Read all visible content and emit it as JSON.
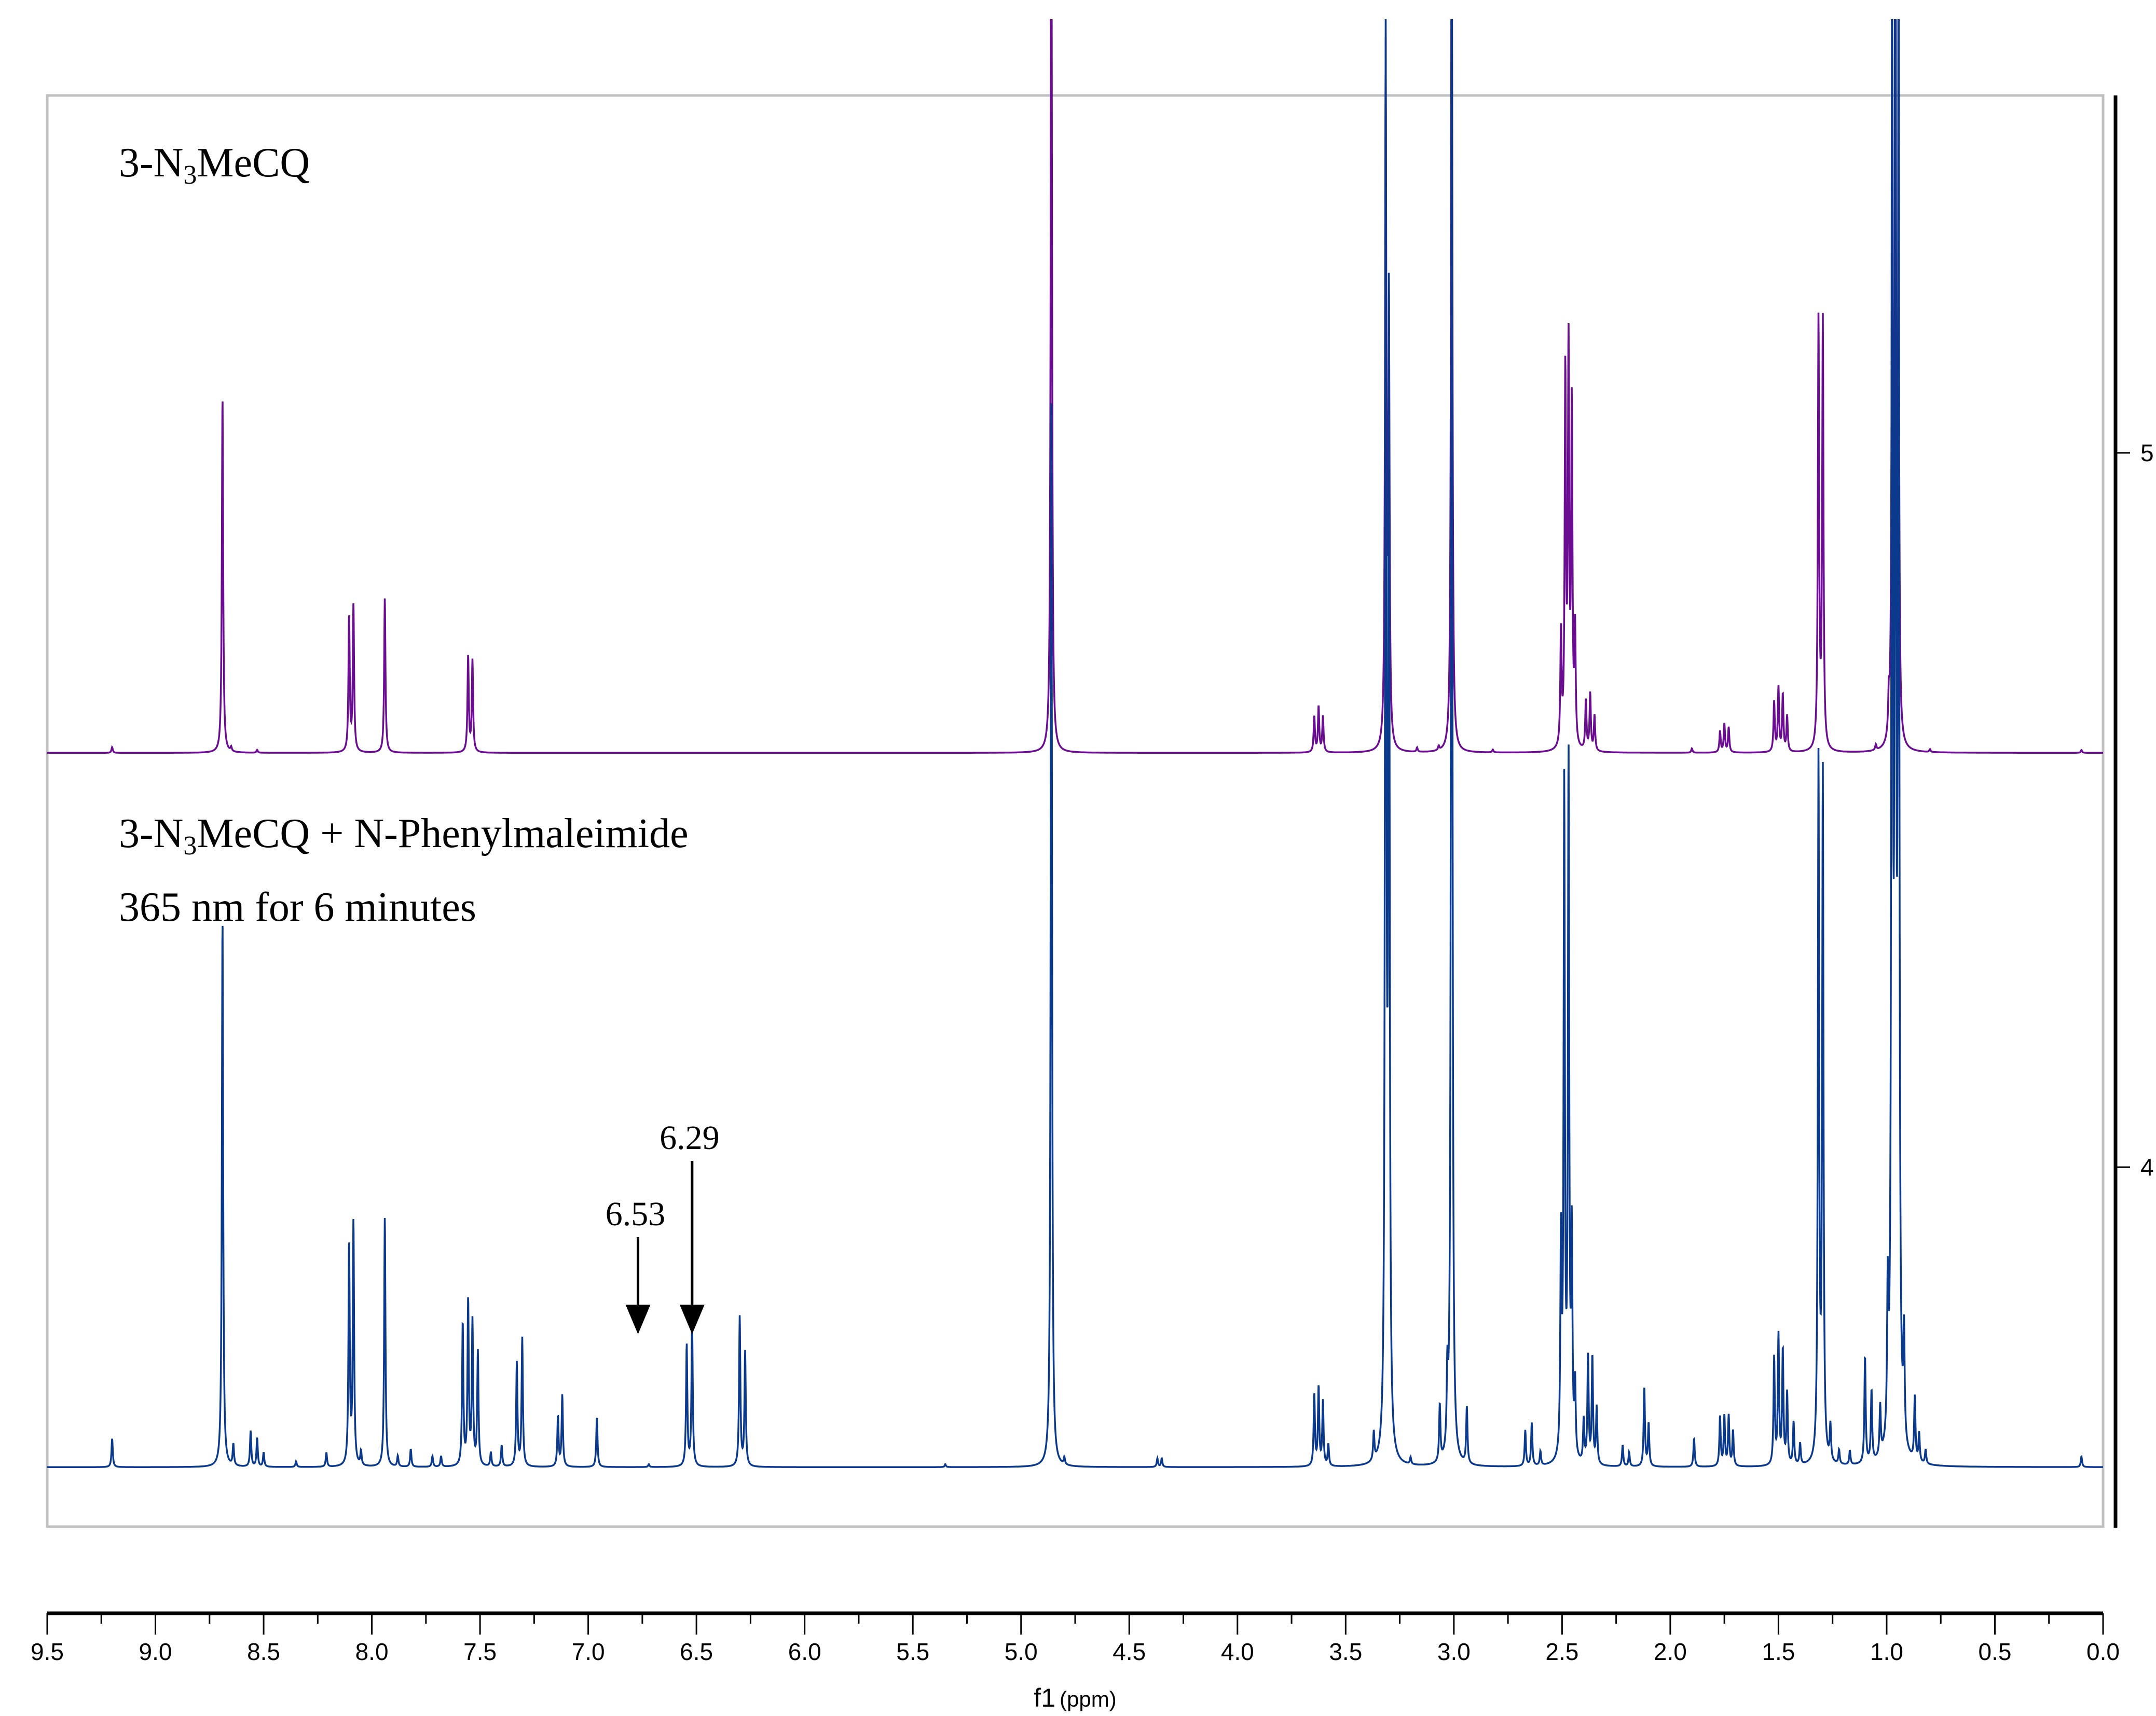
{
  "chart_data": {
    "type": "line",
    "xlabel": "f1 (ppm)",
    "xlabel_main": "f1",
    "xlabel_unit": "(ppm)",
    "xlim": [
      9.5,
      0.0
    ],
    "x_reversed": true,
    "x_ticks": [
      "9.5",
      "9.0",
      "8.5",
      "8.0",
      "7.5",
      "7.0",
      "6.5",
      "6.0",
      "5.5",
      "5.0",
      "4.5",
      "4.0",
      "3.5",
      "3.0",
      "2.5",
      "2.0",
      "1.5",
      "1.0",
      "0.5",
      "0.0"
    ],
    "y_right_ticks": [
      "5",
      "4"
    ],
    "grid": false,
    "series": [
      {
        "name": "3-N3MeCQ",
        "label": {
          "prefix": "3-N",
          "sub": "3",
          "suffix": "MeCQ"
        },
        "color": "#6a0d91",
        "baseline": 4.58,
        "peaks_ppm_height": [
          [
            9.2,
            0.008
          ],
          [
            8.69,
            0.5
          ],
          [
            8.65,
            0.006
          ],
          [
            8.53,
            0.004
          ],
          [
            8.105,
            0.19
          ],
          [
            8.085,
            0.205
          ],
          [
            7.94,
            0.217
          ],
          [
            7.555,
            0.135
          ],
          [
            7.535,
            0.128
          ],
          [
            4.86,
            1.3
          ],
          [
            3.645,
            0.05
          ],
          [
            3.625,
            0.064
          ],
          [
            3.605,
            0.05
          ],
          [
            3.315,
            0.97
          ],
          [
            3.3,
            0.6
          ],
          [
            3.01,
            1.3
          ],
          [
            3.17,
            0.006
          ],
          [
            3.07,
            0.006
          ],
          [
            2.82,
            0.004
          ],
          [
            2.505,
            0.16
          ],
          [
            2.485,
            0.52
          ],
          [
            2.47,
            0.55
          ],
          [
            2.455,
            0.47
          ],
          [
            2.44,
            0.16
          ],
          [
            2.39,
            0.07
          ],
          [
            2.37,
            0.08
          ],
          [
            2.35,
            0.05
          ],
          [
            1.9,
            0.006
          ],
          [
            1.77,
            0.03
          ],
          [
            1.75,
            0.04
          ],
          [
            1.73,
            0.035
          ],
          [
            1.52,
            0.07
          ],
          [
            1.5,
            0.09
          ],
          [
            1.48,
            0.08
          ],
          [
            1.46,
            0.05
          ],
          [
            1.315,
            0.6
          ],
          [
            1.295,
            0.6
          ],
          [
            1.05,
            0.008
          ],
          [
            0.99,
            0.05
          ],
          [
            0.975,
            0.67
          ],
          [
            0.96,
            1.3
          ],
          [
            0.945,
            0.65
          ],
          [
            0.8,
            0.004
          ],
          [
            0.1,
            0.004
          ]
        ]
      },
      {
        "name": "3-N3MeCQ + N-Phenylmaleimide",
        "label": {
          "prefix": "3-N",
          "sub": "3",
          "suffix": "MeCQ + N-Phenylmaleimide"
        },
        "label_line2": "365 nm for 6 minutes",
        "color": "#0b3a8c",
        "baseline": 3.58,
        "peaks_ppm_height": [
          [
            9.2,
            0.04
          ],
          [
            8.69,
            0.77
          ],
          [
            8.64,
            0.03
          ],
          [
            8.56,
            0.05
          ],
          [
            8.53,
            0.04
          ],
          [
            8.5,
            0.02
          ],
          [
            8.35,
            0.008
          ],
          [
            8.21,
            0.02
          ],
          [
            8.105,
            0.31
          ],
          [
            8.085,
            0.34
          ],
          [
            8.05,
            0.02
          ],
          [
            7.94,
            0.35
          ],
          [
            7.88,
            0.015
          ],
          [
            7.82,
            0.025
          ],
          [
            7.72,
            0.015
          ],
          [
            7.68,
            0.015
          ],
          [
            7.58,
            0.2
          ],
          [
            7.555,
            0.23
          ],
          [
            7.535,
            0.2
          ],
          [
            7.51,
            0.16
          ],
          [
            7.45,
            0.02
          ],
          [
            7.4,
            0.03
          ],
          [
            7.33,
            0.145
          ],
          [
            7.305,
            0.18
          ],
          [
            7.14,
            0.07
          ],
          [
            7.12,
            0.1
          ],
          [
            6.96,
            0.07
          ],
          [
            6.72,
            0.004
          ],
          [
            6.545,
            0.17
          ],
          [
            6.52,
            0.2
          ],
          [
            6.3,
            0.21
          ],
          [
            6.275,
            0.16
          ],
          [
            5.35,
            0.004
          ],
          [
            4.86,
            1.5
          ],
          [
            4.8,
            0.01
          ],
          [
            4.37,
            0.012
          ],
          [
            4.35,
            0.012
          ],
          [
            3.645,
            0.1
          ],
          [
            3.625,
            0.11
          ],
          [
            3.605,
            0.09
          ],
          [
            3.58,
            0.03
          ],
          [
            3.37,
            0.04
          ],
          [
            3.315,
            1.97
          ],
          [
            3.3,
            1.6
          ],
          [
            3.2,
            0.01
          ],
          [
            3.065,
            0.08
          ],
          [
            3.03,
            0.1
          ],
          [
            3.01,
            2.3
          ],
          [
            2.94,
            0.08
          ],
          [
            2.67,
            0.05
          ],
          [
            2.64,
            0.06
          ],
          [
            2.6,
            0.02
          ],
          [
            2.505,
            0.3
          ],
          [
            2.49,
            0.93
          ],
          [
            2.47,
            0.97
          ],
          [
            2.455,
            0.3
          ],
          [
            2.44,
            0.1
          ],
          [
            2.4,
            0.06
          ],
          [
            2.38,
            0.15
          ],
          [
            2.36,
            0.15
          ],
          [
            2.34,
            0.08
          ],
          [
            2.22,
            0.03
          ],
          [
            2.19,
            0.02
          ],
          [
            2.12,
            0.11
          ],
          [
            2.1,
            0.06
          ],
          [
            1.89,
            0.04
          ],
          [
            1.77,
            0.07
          ],
          [
            1.75,
            0.07
          ],
          [
            1.73,
            0.07
          ],
          [
            1.71,
            0.05
          ],
          [
            1.52,
            0.15
          ],
          [
            1.5,
            0.18
          ],
          [
            1.48,
            0.16
          ],
          [
            1.46,
            0.1
          ],
          [
            1.43,
            0.06
          ],
          [
            1.4,
            0.03
          ],
          [
            1.315,
            0.98
          ],
          [
            1.295,
            0.96
          ],
          [
            1.26,
            0.05
          ],
          [
            1.22,
            0.02
          ],
          [
            1.17,
            0.02
          ],
          [
            1.1,
            0.15
          ],
          [
            1.07,
            0.1
          ],
          [
            1.03,
            0.07
          ],
          [
            0.995,
            0.2
          ],
          [
            0.975,
            2.1
          ],
          [
            0.96,
            2.2
          ],
          [
            0.945,
            2.1
          ],
          [
            0.92,
            0.15
          ],
          [
            0.87,
            0.09
          ],
          [
            0.85,
            0.04
          ],
          [
            0.82,
            0.02
          ],
          [
            0.1,
            0.015
          ]
        ]
      }
    ],
    "annotations": [
      {
        "text": "6.53",
        "arrow_ppm": 6.77
      },
      {
        "text": "6.29",
        "arrow_ppm": 6.52
      }
    ]
  }
}
